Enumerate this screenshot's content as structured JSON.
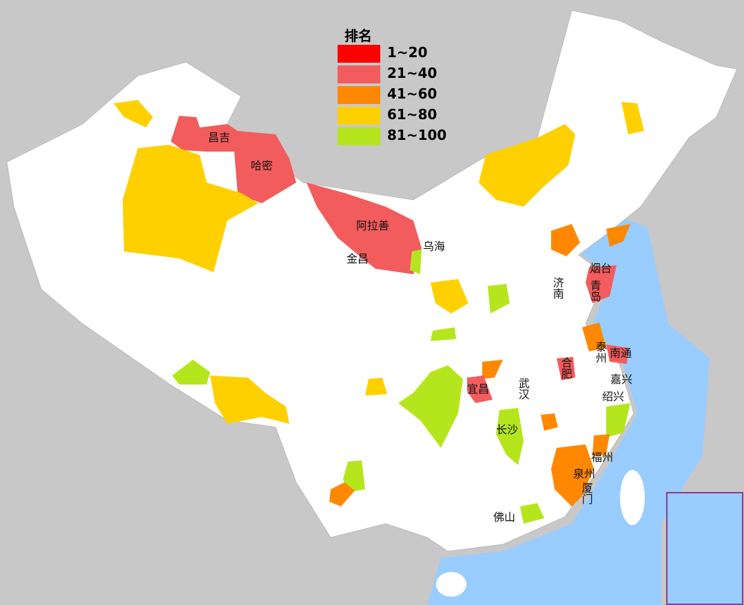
{
  "legend": {
    "title": "排名",
    "items": [
      {
        "label": "1~20",
        "color": "#ff0000"
      },
      {
        "label": "21~40",
        "color": "#f25c5c"
      },
      {
        "label": "41~60",
        "color": "#ff8800"
      },
      {
        "label": "61~80",
        "color": "#ffd000"
      },
      {
        "label": "81~100",
        "color": "#b5e61d"
      }
    ]
  },
  "labels": [
    "昌吉",
    "哈密",
    "阿拉善",
    "金昌",
    "乌海",
    "烟台",
    "青岛",
    "济南",
    "泰州",
    "南通",
    "合肥",
    "嘉兴",
    "绍兴",
    "宜昌",
    "武汉",
    "长沙",
    "福州",
    "泉州",
    "厦门",
    "佛山"
  ]
}
